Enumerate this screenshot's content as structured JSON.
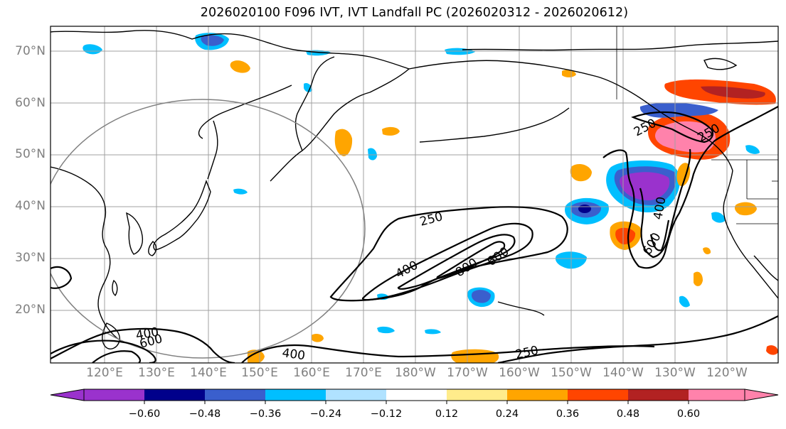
{
  "title": "2026020100 F096 IVT, IVT Landfall PC (2026020312 - 2026020612)",
  "lat_labels": [
    "70°N",
    "60°N",
    "50°N",
    "40°N",
    "30°N",
    "20°N"
  ],
  "lon_labels": [
    "120°E",
    "130°E",
    "140°E",
    "150°E",
    "160°E",
    "170°E",
    "180°W",
    "170°W",
    "160°W",
    "150°W",
    "140°W",
    "130°W",
    "120°W"
  ],
  "contour_labels": {
    "l250_a": "250",
    "l400_a": "400",
    "l800": "800",
    "l600_a": "600",
    "l250_b": "250",
    "l250_c": "250",
    "l400_b": "400",
    "l600_b": "600",
    "l400_c": "400",
    "l600_c": "600",
    "l400_d": "400",
    "l250_d": "250"
  },
  "colorbar": {
    "tick_labels": [
      "−0.60",
      "−0.48",
      "−0.36",
      "−0.24",
      "−0.12",
      "0.12",
      "0.24",
      "0.36",
      "0.48",
      "0.60"
    ],
    "colors": [
      "#9a32cd",
      "#00008b",
      "#3a5fcd",
      "#00bfff",
      "#b0e2ff",
      "#ffffff",
      "#ffec8b",
      "#ffa500",
      "#ff4500",
      "#b22222",
      "#ff82ab"
    ]
  },
  "colors": {
    "grid": "#a0a0a0",
    "axis_label": "#808080",
    "circle": "#808080"
  }
}
